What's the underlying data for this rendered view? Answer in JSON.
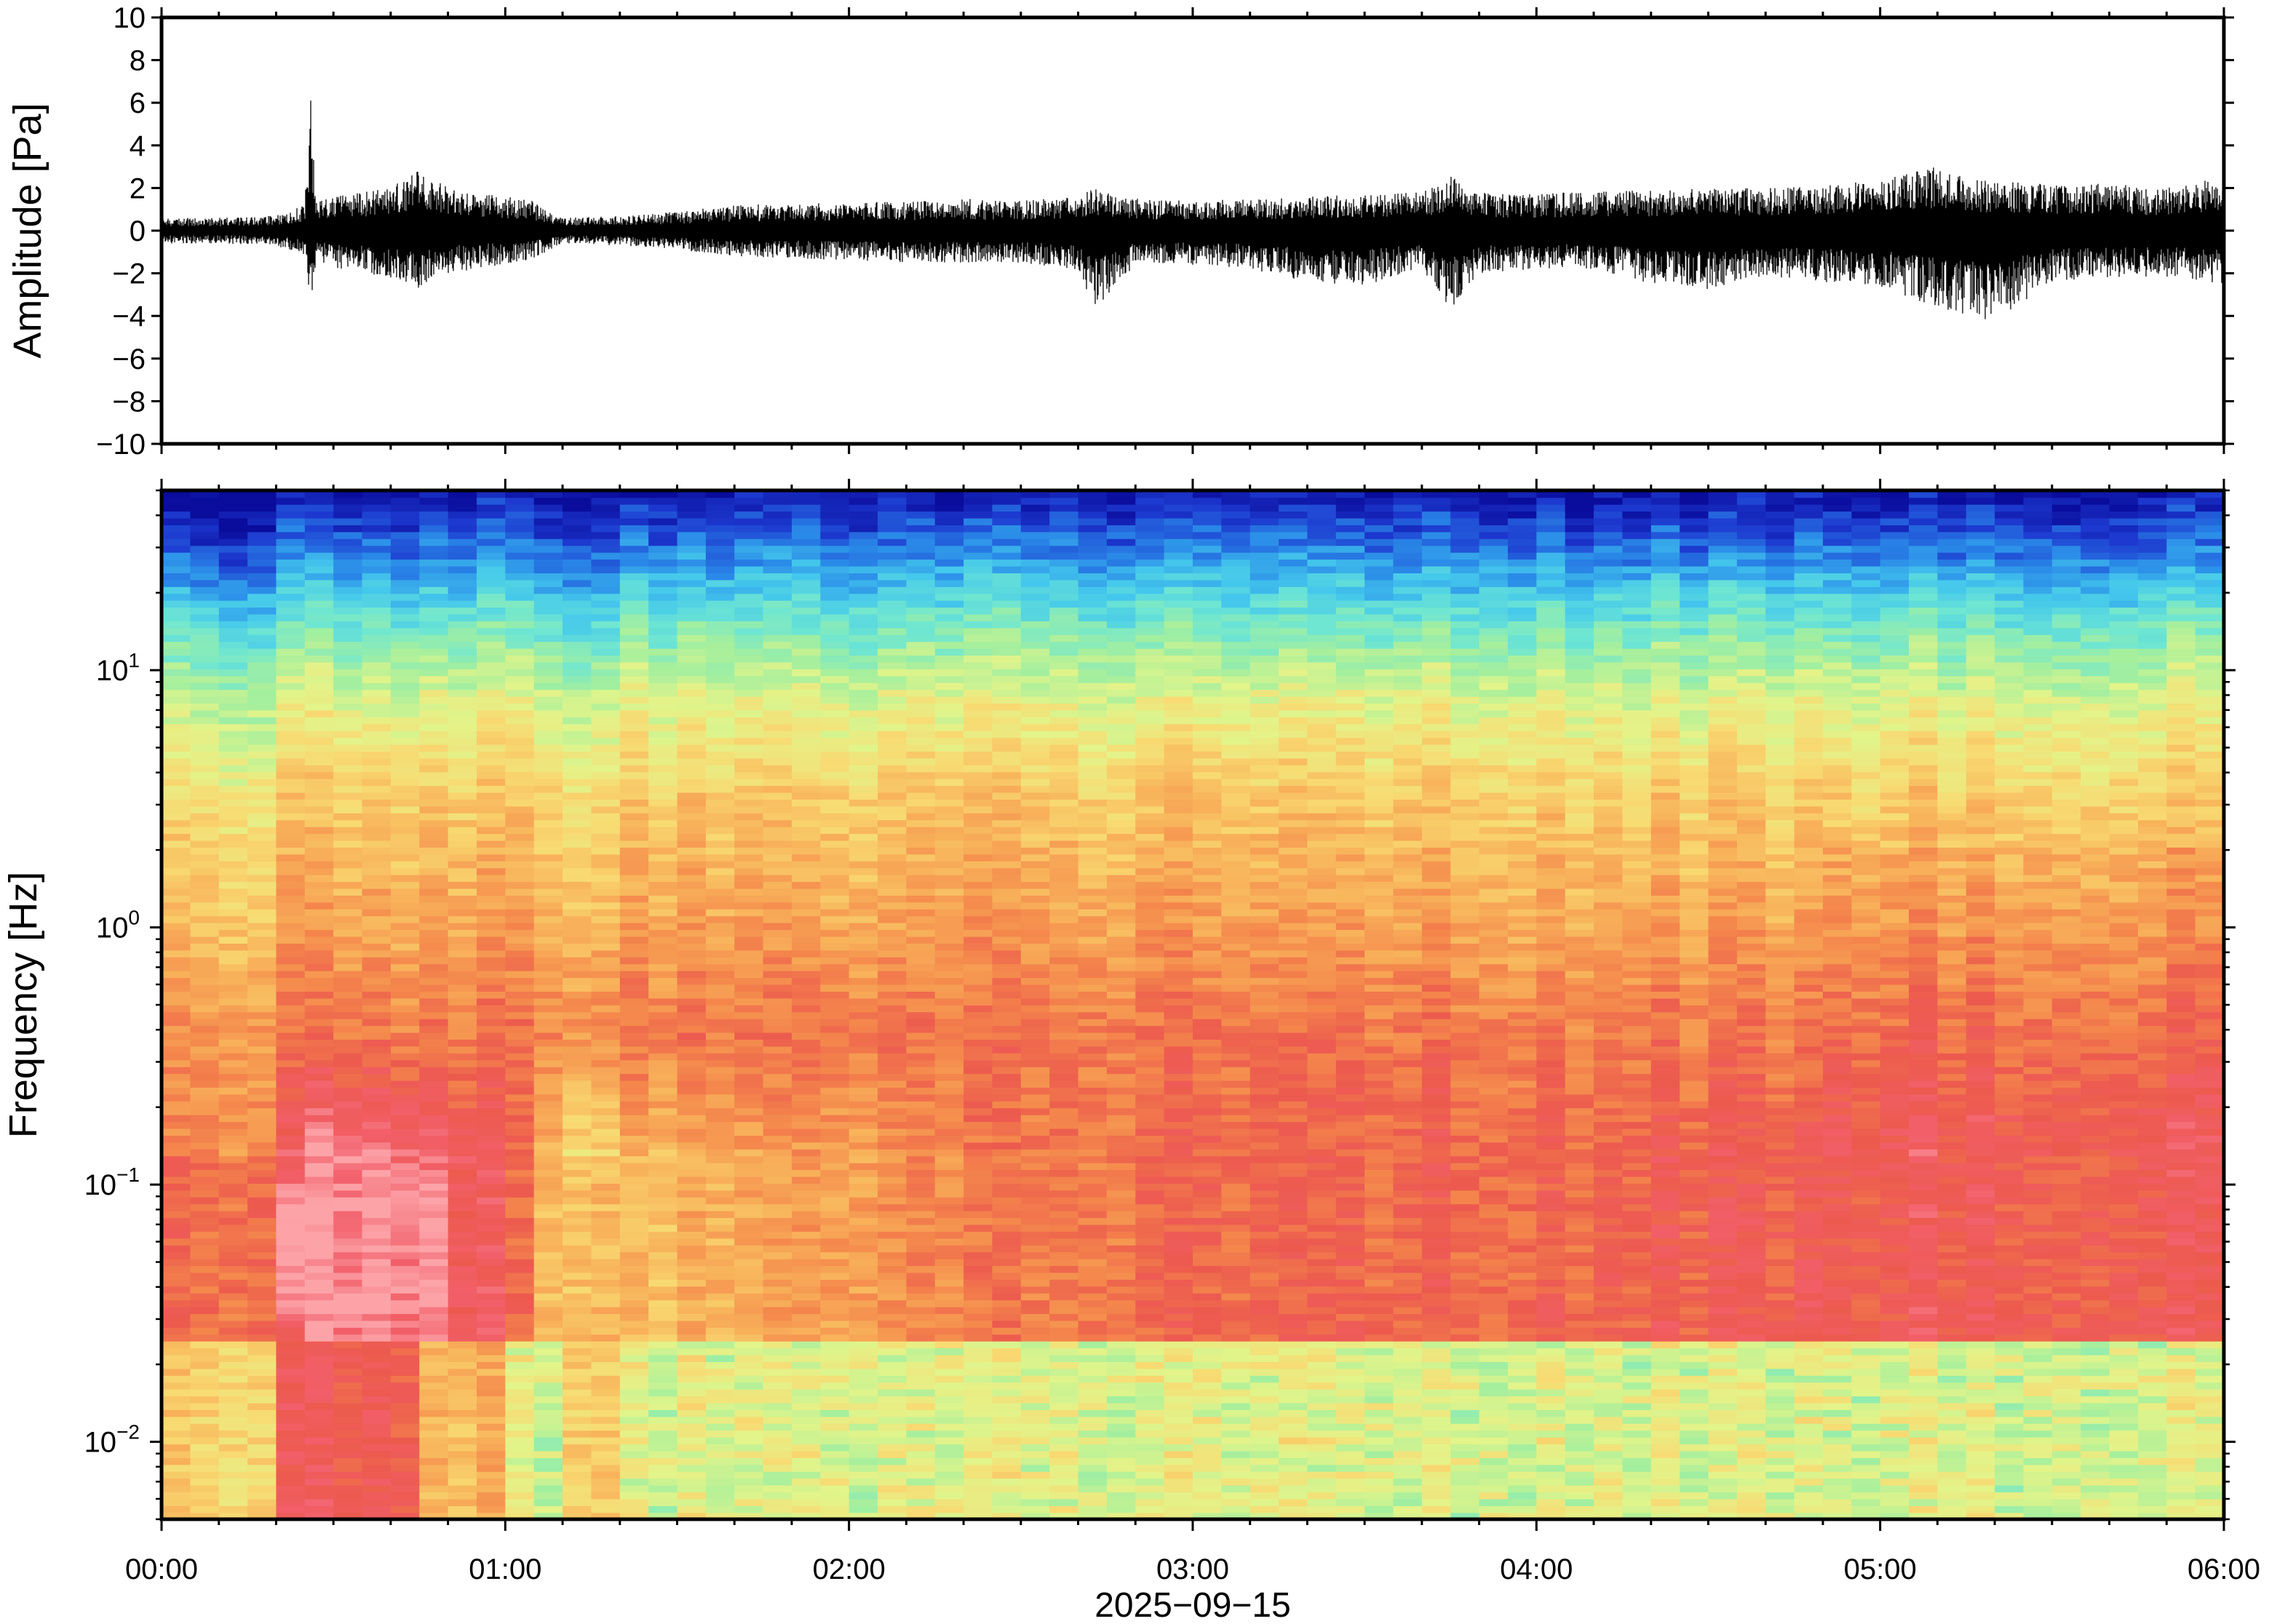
{
  "chart_data": [
    {
      "type": "line",
      "panel": "waveform",
      "ylabel": "Amplitude [Pa]",
      "xlabel": "",
      "xlim": [
        "00:00",
        "06:00"
      ],
      "ylim": [
        -10,
        10
      ],
      "y_ticks": [
        {
          "value": 10,
          "label": "10"
        },
        {
          "value": 8,
          "label": "8"
        },
        {
          "value": 6,
          "label": "6"
        },
        {
          "value": 4,
          "label": "4"
        },
        {
          "value": 2,
          "label": "2"
        },
        {
          "value": 0,
          "label": "0"
        },
        {
          "value": -2,
          "label": "−2"
        },
        {
          "value": -4,
          "label": "−4"
        },
        {
          "value": -6,
          "label": "−6"
        },
        {
          "value": -8,
          "label": "−8"
        },
        {
          "value": -10,
          "label": "−10"
        }
      ],
      "series": [
        {
          "color": "#000000",
          "envelope": {
            "time_min": [
              0,
              10,
              20,
              25,
              26,
              27,
              30,
              40,
              45,
              50,
              60,
              65,
              70,
              80,
              90,
              100,
              110,
              120,
              130,
              140,
              150,
              160,
              163,
              170,
              180,
              190,
              200,
              210,
              220,
              225,
              230,
              240,
              250,
              260,
              270,
              280,
              290,
              300,
              310,
              320,
              330,
              340,
              350,
              360
            ],
            "upper": [
              0.6,
              0.6,
              0.7,
              1.2,
              6.4,
              1.5,
              1.6,
              2.0,
              3.0,
              2.0,
              1.6,
              1.4,
              0.6,
              0.7,
              0.9,
              1.2,
              1.3,
              1.3,
              1.4,
              1.5,
              1.4,
              1.6,
              2.0,
              1.5,
              1.4,
              1.5,
              1.6,
              1.7,
              1.8,
              2.6,
              1.8,
              1.7,
              1.9,
              1.9,
              2.0,
              2.0,
              2.1,
              2.4,
              3.0,
              2.3,
              2.2,
              2.2,
              2.0,
              2.5
            ],
            "lower": [
              -0.6,
              -0.6,
              -0.7,
              -1.2,
              -3.6,
              -1.5,
              -1.8,
              -2.2,
              -2.8,
              -2.0,
              -1.6,
              -1.3,
              -0.6,
              -0.7,
              -0.9,
              -1.2,
              -1.3,
              -1.4,
              -1.5,
              -1.5,
              -1.5,
              -1.9,
              -3.7,
              -1.6,
              -1.6,
              -1.8,
              -2.4,
              -2.6,
              -1.7,
              -3.8,
              -2.0,
              -1.8,
              -1.8,
              -2.5,
              -2.8,
              -2.2,
              -2.4,
              -2.6,
              -3.6,
              -4.3,
              -2.4,
              -2.2,
              -2.2,
              -2.5
            ]
          }
        }
      ]
    },
    {
      "type": "heatmap",
      "panel": "spectrogram",
      "ylabel": "Frequency [Hz]",
      "xlabel": "2025−09−15",
      "xlim": [
        "00:00",
        "06:00"
      ],
      "ylim": [
        0.005,
        50
      ],
      "yscale": "log",
      "y_ticks": [
        {
          "value": 10,
          "base": "10",
          "exp": "1"
        },
        {
          "value": 1,
          "base": "10",
          "exp": "0"
        },
        {
          "value": 0.1,
          "base": "10",
          "exp": "−1"
        },
        {
          "value": 0.01,
          "base": "10",
          "exp": "−2"
        }
      ],
      "x_ticks": [
        "00:00",
        "01:00",
        "02:00",
        "03:00",
        "04:00",
        "05:00",
        "06:00"
      ],
      "colormap": [
        "#0a0c9c",
        "#1d3ad0",
        "#2a8ae8",
        "#44c8ec",
        "#6ee6d2",
        "#a4ef9e",
        "#e2f48a",
        "#f8da72",
        "#f8b25a",
        "#f4864c",
        "#ec5a4e",
        "#f25f6a",
        "#fca3a8"
      ],
      "trend_columns_time_min": [
        0,
        20,
        25,
        40,
        60,
        70,
        80,
        120,
        180,
        240,
        300,
        360
      ],
      "trend_low_freq_intensity": [
        0.78,
        0.82,
        0.97,
        0.98,
        0.85,
        0.62,
        0.64,
        0.72,
        0.8,
        0.82,
        0.86,
        0.86
      ]
    }
  ]
}
